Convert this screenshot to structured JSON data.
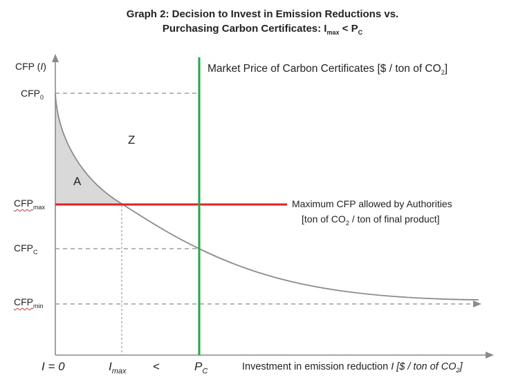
{
  "title": {
    "line1": "Graph 2: Decision to Invest in Emission Reductions vs.",
    "line2_main": "Purchasing Carbon Certificates: I",
    "line2_sub1": "max",
    "line2_mid": " < P",
    "line2_sub2": "C"
  },
  "y_axis": {
    "label_main": "CFP (",
    "label_var": "I",
    "label_end": ")",
    "ticks": [
      {
        "main": "CFP",
        "sub": "0"
      },
      {
        "main": "CFP",
        "sub": "max"
      },
      {
        "main": "CFP",
        "sub": "C"
      },
      {
        "main": "CFP",
        "sub": "min"
      }
    ]
  },
  "x_axis": {
    "tick_zero": "I = 0",
    "tick_imax_main": "I",
    "tick_imax_sub": "max",
    "lt": "<",
    "tick_pc_main": "P",
    "tick_pc_sub": "C",
    "label_main": "Investment in emission reduction ",
    "label_var": "I",
    "label_unit": " [$ / ton of CO",
    "label_unit_sub": "2",
    "label_end": "]"
  },
  "regions": {
    "z": "Z",
    "a": "A"
  },
  "annotations": {
    "market_price": "Market Price of Carbon Certificates [$ / ton of CO",
    "market_price_sub": "2",
    "market_price_end": "]",
    "max_cfp_line1": "Maximum CFP allowed by Authorities",
    "max_cfp_line2_a": "[ton of CO",
    "max_cfp_line2_sub": "2",
    "max_cfp_line2_b": " / ton of final product]"
  },
  "colors": {
    "market_line": "#1faa4a",
    "max_line": "#e02020",
    "curve": "#8a8a8a",
    "region_a": "#d9d9d9",
    "axis": "#8a8a8a"
  }
}
